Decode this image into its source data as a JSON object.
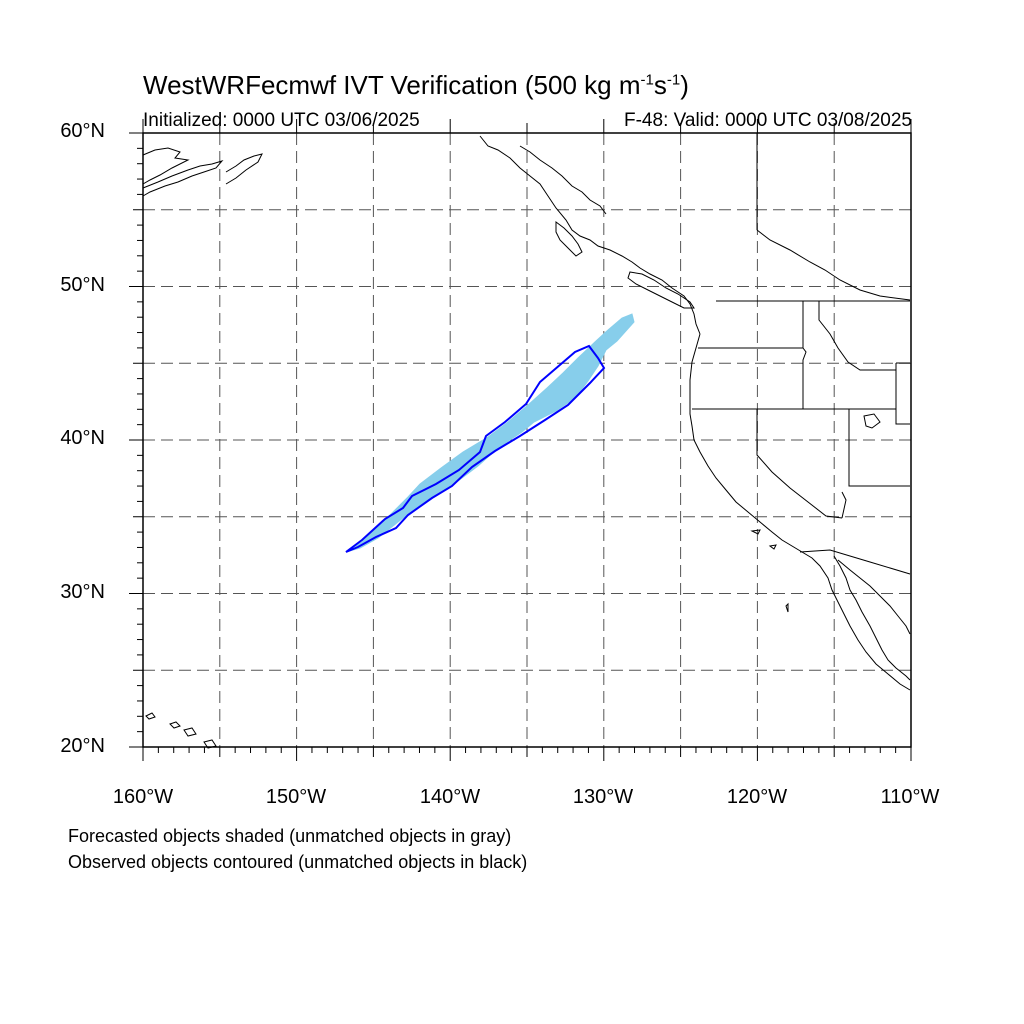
{
  "title": {
    "main": "WestWRFecmwf IVT Verification (500 kg m",
    "sup1": "-1",
    "mid": "s",
    "sup2": "-1",
    "end": ")"
  },
  "subtitle": {
    "initialized": "Initialized: 0000 UTC 03/06/2025",
    "valid": "F-48: Valid: 0000 UTC 03/08/2025"
  },
  "map": {
    "lon_range": [
      -160,
      -110
    ],
    "lat_range": [
      20,
      60
    ],
    "grid_lon": [
      -155,
      -150,
      -145,
      -140,
      -135,
      -130,
      -125,
      -120,
      -115
    ],
    "grid_lat": [
      25,
      30,
      35,
      40,
      45,
      50,
      55
    ],
    "lat_labels": [
      "60°N",
      "50°N",
      "40°N",
      "30°N",
      "20°N"
    ],
    "lon_labels": [
      "160°W",
      "150°W",
      "140°W",
      "130°W",
      "120°W",
      "110°W"
    ],
    "colors": {
      "forecast_fill": "#87ceeb",
      "observed_contour": "#0000ff",
      "coastline": "#000000",
      "grid": "#555555"
    }
  },
  "captions": {
    "line1": "Forecasted objects shaded (unmatched objects in gray)",
    "line2": "Observed objects contoured (unmatched objects in black)"
  }
}
